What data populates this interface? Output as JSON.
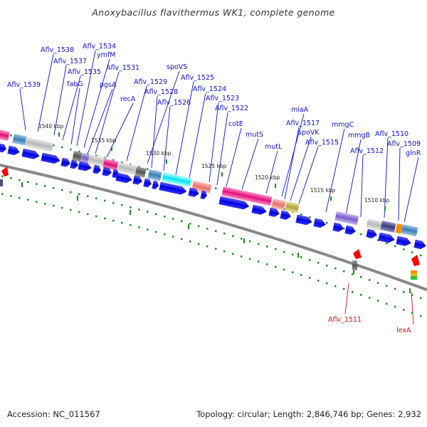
{
  "title": "Anoxybacillus flavithermus WK1, complete genome",
  "footer": {
    "accession_label": "Accession: NC_011567",
    "summary_label": "Topology: circular; Length: 2,846,746 bp; Genes: 2,932"
  },
  "colors": {
    "gene_arrow": "#0000e6",
    "backbone": "#888888",
    "tick": "#1a8a1a",
    "label_blue": "#1010c8",
    "label_red": "#d01010",
    "strand_red": "#ff0000"
  },
  "scale_labels": [
    "1540 kbp",
    "1535 kbp",
    "1530 kbp",
    "1525 kbp",
    "1520 kbp",
    "1515 kbp",
    "1510 kbp"
  ],
  "gene_labels": [
    "Aflv_1539",
    "Aflv_1538",
    "Aflv_1537",
    "Aflv_1535",
    "fabG",
    "Aflv_1534",
    "ymfM",
    "pgsA",
    "Aflv_1531",
    "recA",
    "spoVS",
    "Aflv_1529",
    "Aflv_1528",
    "Aflv_1526",
    "Aflv_1525",
    "Aflv_1524",
    "Aflv_1523",
    "Aflv_1522",
    "cotE",
    "mutS",
    "mutL",
    "miaA",
    "Aflv_1517",
    "spoVK",
    "Aflv_1515",
    "mmgC",
    "mmgB",
    "Aflv_1512",
    "Aflv_1510",
    "Aflv_1509",
    "glnR"
  ],
  "reverse_gene_labels": [
    "Aflv_1511",
    "lexA"
  ]
}
